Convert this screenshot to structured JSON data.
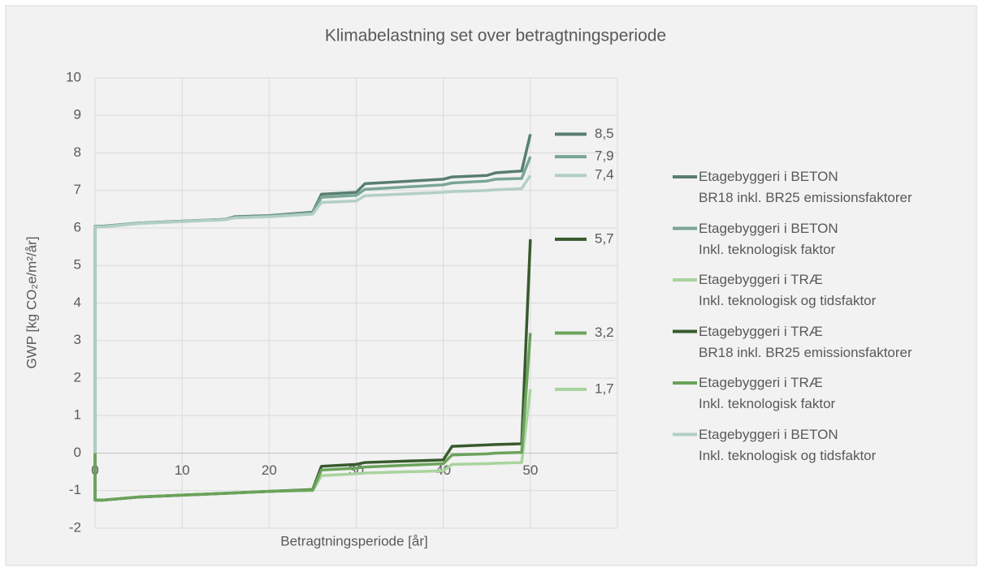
{
  "chart_data": {
    "type": "line",
    "title": "Klimabelastning set over betragtningsperiode",
    "x_label": "Betragtningsperiode [år]",
    "y_label": "GWP [kg CO₂e/m²/år]",
    "x": [
      0,
      0,
      1,
      5,
      10,
      15,
      16,
      20,
      25,
      26,
      30,
      31,
      40,
      41,
      45,
      46,
      49,
      50
    ],
    "xlim": [
      0,
      60
    ],
    "xticks": [
      0,
      10,
      20,
      30,
      40,
      50
    ],
    "ylim": [
      -2,
      10
    ],
    "yticks": [
      -2,
      -1,
      0,
      1,
      2,
      3,
      4,
      5,
      6,
      7,
      8,
      9,
      10
    ],
    "grid": true,
    "series": [
      {
        "name": "Etagebyggeri i BETON\nBR18 inkl. BR25 emissionsfaktorer",
        "color": "#587e6e",
        "values": [
          0,
          6.05,
          6.05,
          6.13,
          6.18,
          6.23,
          6.3,
          6.33,
          6.42,
          6.9,
          6.95,
          7.18,
          7.3,
          7.36,
          7.4,
          7.47,
          7.52,
          8.5
        ],
        "end_label": "8,5"
      },
      {
        "name": "Etagebyggeri i BETON\nInkl. teknologisk faktor",
        "color": "#7aa595",
        "values": [
          0,
          6.05,
          6.05,
          6.13,
          6.18,
          6.23,
          6.28,
          6.32,
          6.4,
          6.82,
          6.87,
          7.03,
          7.15,
          7.2,
          7.25,
          7.3,
          7.32,
          7.9
        ],
        "end_label": "7,9"
      },
      {
        "name": "Etagebyggeri i TRÆ\nInkl. teknologisk og tidsfaktor",
        "color": "#a9d39e",
        "values": [
          0,
          -1.25,
          -1.25,
          -1.17,
          -1.12,
          -1.07,
          -1.06,
          -1.02,
          -1.0,
          -0.6,
          -0.55,
          -0.53,
          -0.47,
          -0.3,
          -0.28,
          -0.27,
          -0.25,
          1.7
        ],
        "end_label": "1,7"
      },
      {
        "name": "Etagebyggeri i TRÆ\nBR18 inkl. BR25 emissionsfaktorer",
        "color": "#375a2d",
        "values": [
          0,
          -1.25,
          -1.25,
          -1.17,
          -1.12,
          -1.07,
          -1.06,
          -1.02,
          -0.97,
          -0.35,
          -0.3,
          -0.25,
          -0.18,
          0.18,
          0.22,
          0.23,
          0.25,
          5.7
        ],
        "end_label": "5,7"
      },
      {
        "name": "Etagebyggeri i TRÆ\nInkl. teknologisk faktor",
        "color": "#6aa35a",
        "values": [
          0,
          -1.25,
          -1.25,
          -1.17,
          -1.12,
          -1.07,
          -1.06,
          -1.02,
          -0.98,
          -0.45,
          -0.4,
          -0.37,
          -0.28,
          -0.05,
          -0.02,
          0,
          0.02,
          3.2
        ],
        "end_label": "3,2"
      },
      {
        "name": "Etagebyggeri i BETON\nInkl. teknologisk og tidsfaktor",
        "color": "#b1cfc6",
        "values": [
          0,
          6.03,
          6.03,
          6.12,
          6.17,
          6.22,
          6.27,
          6.3,
          6.37,
          6.68,
          6.72,
          6.86,
          6.95,
          6.97,
          7.0,
          7.02,
          7.05,
          7.4
        ],
        "end_label": "7,4"
      }
    ]
  }
}
